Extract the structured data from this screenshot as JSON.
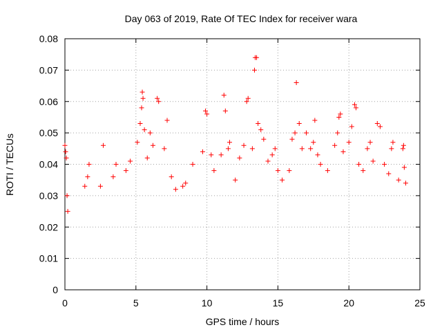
{
  "chart_data": {
    "type": "scatter",
    "title": "Day 063 of 2019, Rate Of TEC Index for receiver wara",
    "xlabel": "GPS time / hours",
    "ylabel": "ROTI / TECUs",
    "xlim": [
      0,
      25
    ],
    "ylim": [
      0,
      0.08
    ],
    "x_ticks": [
      0,
      5,
      10,
      15,
      20,
      25
    ],
    "y_ticks": [
      0,
      0.01,
      0.02,
      0.03,
      0.04,
      0.05,
      0.06,
      0.07,
      0.08
    ],
    "x_tick_labels": [
      "0",
      "5",
      "10",
      "15",
      "20",
      "25"
    ],
    "y_tick_labels": [
      "0",
      "0.01",
      "0.02",
      "0.03",
      "0.04",
      "0.05",
      "0.06",
      "0.07",
      "0.08"
    ],
    "grid": true,
    "marker": "plus",
    "series_color": "#ff0000",
    "series": [
      {
        "name": "ROTI",
        "points": [
          [
            0.0,
            0.046
          ],
          [
            0.05,
            0.044
          ],
          [
            0.1,
            0.042
          ],
          [
            0.15,
            0.03
          ],
          [
            0.2,
            0.025
          ],
          [
            1.4,
            0.033
          ],
          [
            1.6,
            0.036
          ],
          [
            1.7,
            0.04
          ],
          [
            2.5,
            0.033
          ],
          [
            2.7,
            0.046
          ],
          [
            3.4,
            0.036
          ],
          [
            3.6,
            0.04
          ],
          [
            4.3,
            0.038
          ],
          [
            4.6,
            0.041
          ],
          [
            5.1,
            0.047
          ],
          [
            5.3,
            0.053
          ],
          [
            5.4,
            0.058
          ],
          [
            5.45,
            0.063
          ],
          [
            5.5,
            0.061
          ],
          [
            5.6,
            0.051
          ],
          [
            5.8,
            0.042
          ],
          [
            6.0,
            0.05
          ],
          [
            6.2,
            0.046
          ],
          [
            6.5,
            0.061
          ],
          [
            6.6,
            0.06
          ],
          [
            7.0,
            0.045
          ],
          [
            7.2,
            0.054
          ],
          [
            7.5,
            0.036
          ],
          [
            7.8,
            0.032
          ],
          [
            8.3,
            0.033
          ],
          [
            8.5,
            0.034
          ],
          [
            9.0,
            0.04
          ],
          [
            9.7,
            0.044
          ],
          [
            9.9,
            0.057
          ],
          [
            10.0,
            0.056
          ],
          [
            10.3,
            0.043
          ],
          [
            10.5,
            0.038
          ],
          [
            11.0,
            0.043
          ],
          [
            11.2,
            0.062
          ],
          [
            11.3,
            0.057
          ],
          [
            11.5,
            0.045
          ],
          [
            11.6,
            0.047
          ],
          [
            12.0,
            0.035
          ],
          [
            12.3,
            0.042
          ],
          [
            12.6,
            0.046
          ],
          [
            12.8,
            0.06
          ],
          [
            12.9,
            0.061
          ],
          [
            13.2,
            0.045
          ],
          [
            13.35,
            0.07
          ],
          [
            13.4,
            0.074
          ],
          [
            13.5,
            0.074
          ],
          [
            13.6,
            0.053
          ],
          [
            13.8,
            0.051
          ],
          [
            14.0,
            0.048
          ],
          [
            14.3,
            0.041
          ],
          [
            14.6,
            0.043
          ],
          [
            14.8,
            0.045
          ],
          [
            15.0,
            0.038
          ],
          [
            15.3,
            0.035
          ],
          [
            15.8,
            0.038
          ],
          [
            16.0,
            0.048
          ],
          [
            16.2,
            0.05
          ],
          [
            16.3,
            0.066
          ],
          [
            16.5,
            0.053
          ],
          [
            16.7,
            0.045
          ],
          [
            17.0,
            0.05
          ],
          [
            17.3,
            0.045
          ],
          [
            17.5,
            0.047
          ],
          [
            17.6,
            0.054
          ],
          [
            17.8,
            0.043
          ],
          [
            18.0,
            0.04
          ],
          [
            18.5,
            0.038
          ],
          [
            19.0,
            0.046
          ],
          [
            19.2,
            0.05
          ],
          [
            19.3,
            0.055
          ],
          [
            19.4,
            0.056
          ],
          [
            19.6,
            0.044
          ],
          [
            20.0,
            0.047
          ],
          [
            20.2,
            0.052
          ],
          [
            20.4,
            0.059
          ],
          [
            20.5,
            0.058
          ],
          [
            20.7,
            0.04
          ],
          [
            21.0,
            0.038
          ],
          [
            21.3,
            0.045
          ],
          [
            21.5,
            0.047
          ],
          [
            21.7,
            0.041
          ],
          [
            22.0,
            0.053
          ],
          [
            22.2,
            0.052
          ],
          [
            22.5,
            0.04
          ],
          [
            22.8,
            0.037
          ],
          [
            23.0,
            0.045
          ],
          [
            23.1,
            0.047
          ],
          [
            23.5,
            0.035
          ],
          [
            23.8,
            0.045
          ],
          [
            23.85,
            0.046
          ],
          [
            23.9,
            0.039
          ],
          [
            24.0,
            0.034
          ]
        ]
      }
    ]
  }
}
